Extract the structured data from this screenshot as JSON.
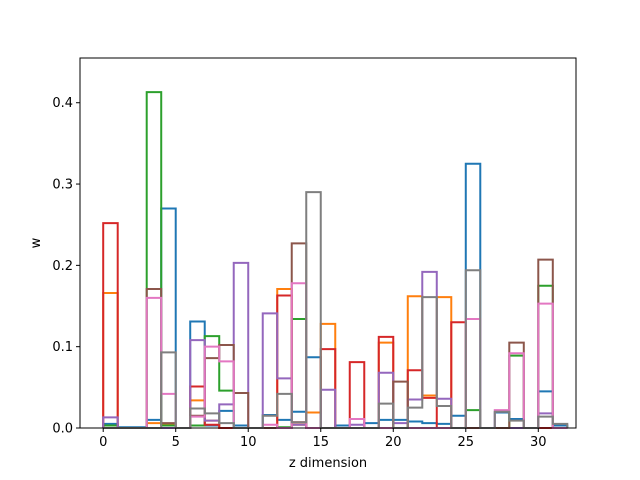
{
  "chart_data": {
    "type": "bar",
    "style": "step histogram, unfilled outlines, one series per color",
    "xlabel": "z dimension",
    "ylabel": "w",
    "xlim": [
      -1.6,
      32.6
    ],
    "ylim": [
      0,
      0.455
    ],
    "xticks": [
      0,
      5,
      10,
      15,
      20,
      25,
      30
    ],
    "yticks": [
      0.0,
      0.1,
      0.2,
      0.3,
      0.4
    ],
    "ytick_labels": [
      "0.0",
      "0.1",
      "0.2",
      "0.3",
      "0.4"
    ],
    "bin_edges": [
      0,
      1,
      2,
      3,
      4,
      5,
      6,
      7,
      8,
      9,
      10,
      11,
      12,
      13,
      14,
      15,
      16,
      17,
      18,
      19,
      20,
      21,
      22,
      23,
      24,
      25,
      26,
      27,
      28,
      29,
      30,
      31,
      32
    ],
    "grid": false,
    "legend": false,
    "series": [
      {
        "color": "#1f77b4",
        "values": [
          0.005,
          0.001,
          0.001,
          0.01,
          0.27,
          0.0,
          0.131,
          0.003,
          0.021,
          0.003,
          0.0,
          0.016,
          0.01,
          0.02,
          0.087,
          0.0,
          0.003,
          0.0,
          0.006,
          0.01,
          0.01,
          0.008,
          0.006,
          0.005,
          0.015,
          0.325,
          0.0,
          0.019,
          0.011,
          0.0,
          0.045,
          0.003
        ]
      },
      {
        "color": "#ff7f0e",
        "values": [
          0.166,
          0.0,
          0.0,
          0.006,
          0.004,
          0.0,
          0.034,
          0.009,
          0.0,
          0.0,
          0.0,
          0.0,
          0.171,
          0.004,
          0.019,
          0.128,
          0.0,
          0.0,
          0.0,
          0.105,
          0.0,
          0.162,
          0.04,
          0.161,
          0.0,
          0.0,
          0.0,
          0.0,
          0.0,
          0.0,
          0.0,
          0.0
        ]
      },
      {
        "color": "#2ca02c",
        "values": [
          0.003,
          0.0,
          0.0,
          0.413,
          0.003,
          0.0,
          0.003,
          0.113,
          0.046,
          0.0,
          0.0,
          0.0,
          0.001,
          0.134,
          0.0,
          0.0,
          0.0,
          0.0,
          0.0,
          0.0,
          0.0,
          0.0,
          0.0,
          0.0,
          0.0,
          0.022,
          0.0,
          0.0,
          0.089,
          0.0,
          0.175,
          0.0
        ]
      },
      {
        "color": "#d62728",
        "values": [
          0.252,
          0.0,
          0.0,
          0.0,
          0.0,
          0.0,
          0.051,
          0.004,
          0.0,
          0.0,
          0.0,
          0.0,
          0.163,
          0.007,
          0.0,
          0.097,
          0.0,
          0.081,
          0.0,
          0.112,
          0.0,
          0.071,
          0.037,
          0.0,
          0.13,
          0.0,
          0.0,
          0.0,
          0.0,
          0.0,
          0.0,
          0.0
        ]
      },
      {
        "color": "#9467bd",
        "values": [
          0.013,
          0.0,
          0.0,
          0.0,
          0.0,
          0.0,
          0.108,
          0.009,
          0.029,
          0.203,
          0.0,
          0.141,
          0.061,
          0.004,
          0.0,
          0.047,
          0.0,
          0.004,
          0.0,
          0.068,
          0.006,
          0.035,
          0.192,
          0.036,
          0.0,
          0.0,
          0.0,
          0.0,
          0.0,
          0.0,
          0.018,
          0.0
        ]
      },
      {
        "color": "#8c564b",
        "values": [
          0.0,
          0.0,
          0.0,
          0.171,
          0.006,
          0.0,
          0.015,
          0.086,
          0.102,
          0.043,
          0.0,
          0.0,
          0.0,
          0.227,
          0.0,
          0.0,
          0.0,
          0.0,
          0.0,
          0.0,
          0.057,
          0.0,
          0.0,
          0.0,
          0.0,
          0.0,
          0.0,
          0.0,
          0.105,
          0.0,
          0.207,
          0.0
        ]
      },
      {
        "color": "#e377c2",
        "values": [
          0.0,
          0.0,
          0.0,
          0.16,
          0.042,
          0.0,
          0.014,
          0.1,
          0.082,
          0.0,
          0.0,
          0.004,
          0.0,
          0.178,
          0.0,
          0.0,
          0.0,
          0.011,
          0.0,
          0.0,
          0.0,
          0.0,
          0.0,
          0.0,
          0.0,
          0.134,
          0.0,
          0.022,
          0.092,
          0.0,
          0.153,
          0.0
        ]
      },
      {
        "color": "#7f7f7f",
        "values": [
          0.0,
          0.0,
          0.0,
          0.0,
          0.093,
          0.0,
          0.024,
          0.018,
          0.006,
          0.0,
          0.0,
          0.015,
          0.042,
          0.007,
          0.29,
          0.0,
          0.0,
          0.0,
          0.0,
          0.03,
          0.0,
          0.025,
          0.161,
          0.027,
          0.0,
          0.194,
          0.0,
          0.02,
          0.009,
          0.0,
          0.014,
          0.005
        ]
      }
    ]
  }
}
